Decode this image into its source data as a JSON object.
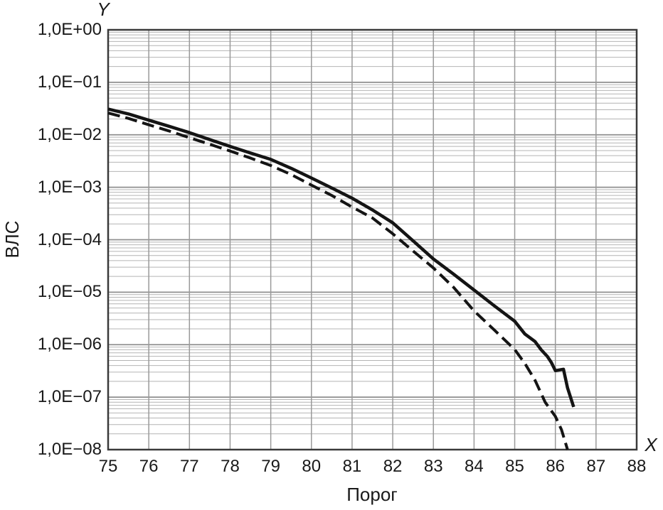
{
  "chart_data": {
    "type": "line",
    "title": "",
    "xlabel": "Порог",
    "ylabel": "ВЛС",
    "x_axis_letter": "X",
    "y_axis_letter": "Y",
    "xlim": [
      75,
      88
    ],
    "ylim_exp": [
      -8,
      0
    ],
    "x_ticks": [
      75,
      76,
      77,
      78,
      79,
      80,
      81,
      82,
      83,
      84,
      85,
      86,
      87,
      88
    ],
    "y_ticks": [
      {
        "label": "1,0E+00",
        "value": 1
      },
      {
        "label": "1,0E−01",
        "value": 0.1
      },
      {
        "label": "1,0E−02",
        "value": 0.01
      },
      {
        "label": "1,0E−03",
        "value": 0.001
      },
      {
        "label": "1,0E−04",
        "value": 0.0001
      },
      {
        "label": "1,0E−05",
        "value": 1e-05
      },
      {
        "label": "1,0E−06",
        "value": 1e-06
      },
      {
        "label": "1,0E−07",
        "value": 1e-07
      },
      {
        "label": "1,0E−08",
        "value": 1e-08
      }
    ],
    "grid": {
      "horizontal": "log-decades-with-minors-2-9",
      "vertical": "every-integer",
      "on": true
    },
    "legend": "none",
    "series": [
      {
        "name": "solid-curve",
        "style": "solid",
        "color": "#141414",
        "points": [
          [
            75,
            0.031
          ],
          [
            75.5,
            0.025
          ],
          [
            76,
            0.019
          ],
          [
            76.5,
            0.0145
          ],
          [
            77,
            0.011
          ],
          [
            77.5,
            0.0081
          ],
          [
            78,
            0.006
          ],
          [
            78.5,
            0.0045
          ],
          [
            79,
            0.0034
          ],
          [
            79.5,
            0.0023
          ],
          [
            80,
            0.0015
          ],
          [
            80.5,
            0.00097
          ],
          [
            81,
            0.00062
          ],
          [
            81.5,
            0.00037
          ],
          [
            82,
            0.00021
          ],
          [
            82.5,
            9.5e-05
          ],
          [
            83,
            4.3e-05
          ],
          [
            83.5,
            2.2e-05
          ],
          [
            84,
            1.1e-05
          ],
          [
            84.5,
            5.5e-06
          ],
          [
            85,
            2.8e-06
          ],
          [
            85.25,
            1.6e-06
          ],
          [
            85.5,
            1.15e-06
          ],
          [
            85.65,
            8e-07
          ],
          [
            85.8,
            6e-07
          ],
          [
            85.9,
            4.6e-07
          ],
          [
            86,
            3.2e-07
          ],
          [
            86.2,
            3.4e-07
          ],
          [
            86.3,
            1.5e-07
          ],
          [
            86.45,
            6.5e-08
          ]
        ]
      },
      {
        "name": "dashed-curve",
        "style": "dashed",
        "color": "#141414",
        "points": [
          [
            75,
            0.026
          ],
          [
            75.5,
            0.0205
          ],
          [
            76,
            0.0155
          ],
          [
            76.5,
            0.0118
          ],
          [
            77,
            0.0088
          ],
          [
            77.5,
            0.0066
          ],
          [
            78,
            0.0049
          ],
          [
            78.5,
            0.0036
          ],
          [
            79,
            0.0026
          ],
          [
            79.5,
            0.00175
          ],
          [
            80,
            0.0011
          ],
          [
            80.5,
            0.0007
          ],
          [
            81,
            0.00042
          ],
          [
            81.5,
            0.00026
          ],
          [
            82,
            0.00013
          ],
          [
            82.5,
            6.1e-05
          ],
          [
            83,
            2.9e-05
          ],
          [
            83.5,
            1.23e-05
          ],
          [
            84,
            4.4e-06
          ],
          [
            84.5,
            1.9e-06
          ],
          [
            85,
            8.1e-07
          ],
          [
            85.25,
            4.4e-07
          ],
          [
            85.5,
            2.1e-07
          ],
          [
            85.75,
            8e-08
          ],
          [
            86,
            4.3e-08
          ],
          [
            86.15,
            2.4e-08
          ],
          [
            86.3,
            1e-08
          ]
        ]
      }
    ],
    "colors": {
      "background": "#ffffff",
      "plot_border": "#3a3a3a",
      "grid_major": "#8f8f8f",
      "grid_minor": "#b4b4b4",
      "grid_vertical": "#9a9a9a",
      "text": "#1a1a1a"
    }
  }
}
